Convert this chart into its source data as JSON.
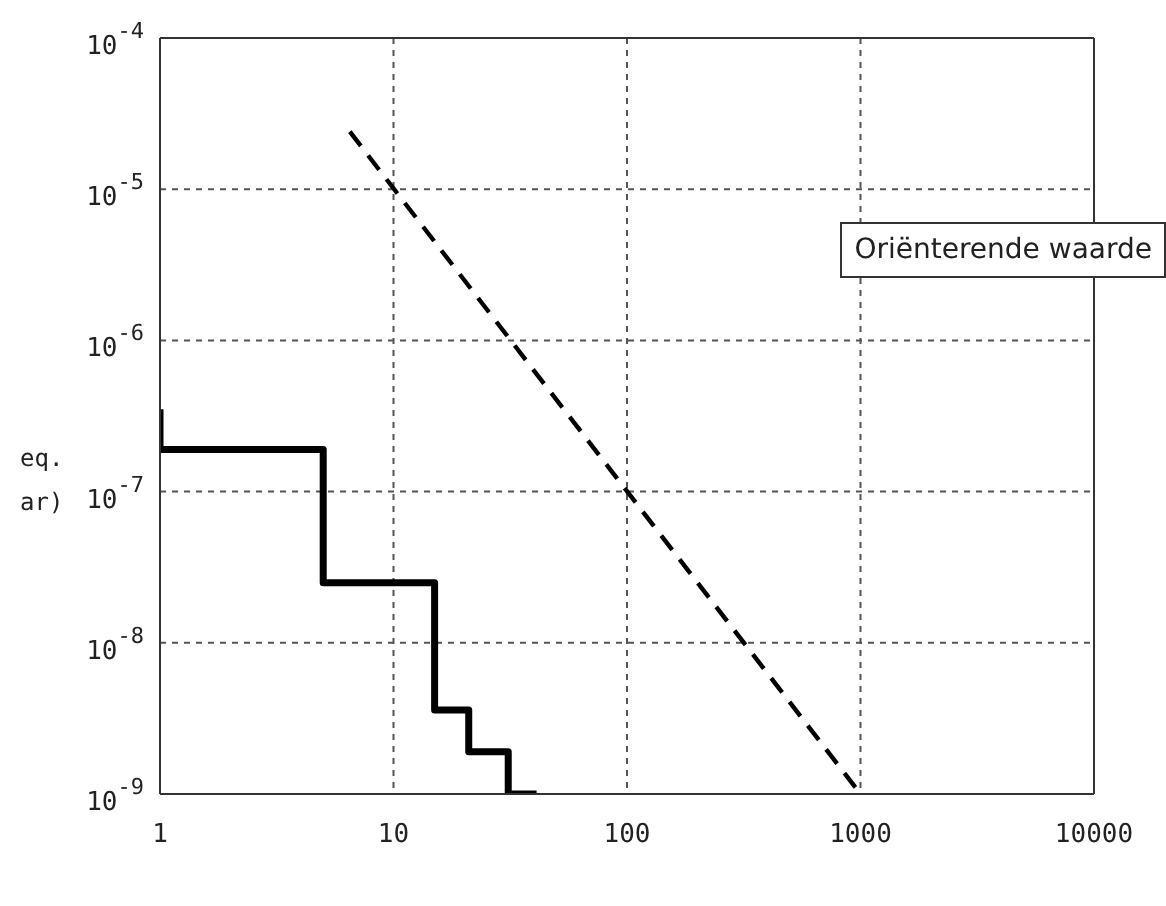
{
  "chart_data": {
    "type": "line",
    "ylabel": "eq. ar)",
    "log": "xy",
    "grid": true,
    "legend": "top right",
    "xlim": [
      1,
      10000
    ],
    "xticks": [
      1,
      10,
      100,
      1000,
      10000
    ],
    "ylim": [
      1e-09,
      0.0001
    ],
    "yticks": [
      {
        "value": 1e-09,
        "label": "10$^{-9}$"
      },
      {
        "value": 1e-08,
        "label": "10$^{-8}$"
      },
      {
        "value": 1e-07,
        "label": "10$^{-7}$"
      },
      {
        "value": 1e-06,
        "label": "10$^{-6}$"
      },
      {
        "value": 1e-05,
        "label": "10$^{-5}$"
      },
      {
        "value": 0.0001,
        "label": "10$^{-4}$"
      }
    ],
    "series": [
      {
        "type": "step",
        "color": "#000000",
        "line_style": "solid",
        "x": [
          1,
          1,
          5,
          15,
          21,
          31,
          41
        ],
        "values": [
          3.5e-07,
          1.9e-07,
          2.5e-08,
          3.6e-09,
          1.9e-09,
          1e-09,
          1e-09
        ]
      },
      {
        "type": "line",
        "name": "Oriënterende waarde",
        "color": "#000000",
        "line_style": "dashed",
        "x": [
          6.5,
          1000
        ],
        "values": [
          2.4e-05,
          1e-09
        ]
      }
    ]
  }
}
